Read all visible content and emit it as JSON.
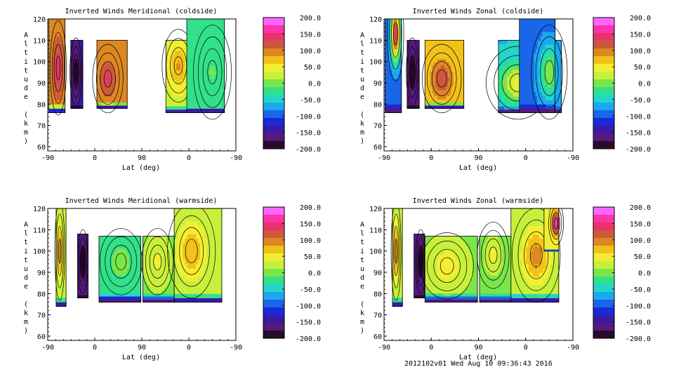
{
  "footer": "2012102v01 Wed Aug 10 09:36:43 2016",
  "colorbar": {
    "ticks": [
      200,
      150,
      100,
      50,
      0,
      -50,
      -100,
      -150,
      -200
    ],
    "tick_labels": [
      "200.0",
      "150.0",
      "100.0",
      "50.0",
      "0.0",
      "-50.0",
      "-100.0",
      "-150.0",
      "-200.0"
    ],
    "colors": [
      "#ff66ff",
      "#ff33aa",
      "#e8336b",
      "#cc5a3a",
      "#dd8822",
      "#f2c21a",
      "#f2ee33",
      "#c8f03a",
      "#7be64a",
      "#33e08a",
      "#22d6c8",
      "#1aa8f0",
      "#1a66e8",
      "#1a2ad8",
      "#3a1aa8",
      "#551a7a",
      "#2a0a2a"
    ]
  },
  "chart_data": [
    {
      "type": "heatmap",
      "title": "Inverted Winds Meridional (coldside)",
      "xlabel": "Lat (deg)",
      "ylabel": "Altitude (km)",
      "x_ticks": [
        "-90",
        "0",
        "90",
        "0",
        "-90"
      ],
      "y_ticks": [
        60,
        70,
        80,
        90,
        100,
        110,
        120
      ],
      "ylim": [
        58,
        120
      ],
      "zlim": [
        -200,
        200
      ],
      "blocks": [
        {
          "lat": [
            -88,
            -57
          ],
          "alt": [
            76,
            120
          ],
          "peak": [
            -70,
            97,
            145
          ],
          "bg": 95,
          "base": 80
        },
        {
          "lat": [
            -46,
            -23
          ],
          "alt": [
            78,
            110
          ],
          "peak": [
            -36,
            95,
            -195
          ],
          "bg": -150,
          "base": 80
        },
        {
          "lat": [
            4,
            62
          ],
          "alt": [
            78,
            110
          ],
          "peak": [
            25,
            92,
            135
          ],
          "bg": 85,
          "base": 81
        },
        {
          "lat": [
            136,
            198
          ],
          "alt": [
            76,
            110
          ],
          "peak": [
            160,
            98,
            85
          ],
          "bg": 30,
          "base": 79
        },
        {
          "lat": [
            176,
            248
          ],
          "alt": [
            76,
            120
          ],
          "peak": [
            225,
            95,
            -10
          ],
          "bg": -35,
          "base": 79
        }
      ]
    },
    {
      "type": "heatmap",
      "title": "Inverted Winds Zonal (coldside)",
      "xlabel": "Lat (deg)",
      "ylabel": "Altitude (km)",
      "x_ticks": [
        "-90",
        "0",
        "90",
        "0",
        "-90"
      ],
      "y_ticks": [
        60,
        70,
        80,
        90,
        100,
        110,
        120
      ],
      "ylim": [
        58,
        120
      ],
      "zlim": [
        -200,
        200
      ],
      "blocks": [
        {
          "lat": [
            -88,
            -57
          ],
          "alt": [
            76,
            120
          ],
          "peak": [
            -68,
            113,
            150
          ],
          "bg": -95,
          "base": 80
        },
        {
          "lat": [
            -46,
            -23
          ],
          "alt": [
            78,
            110
          ],
          "peak": [
            -36,
            95,
            -195
          ],
          "bg": -160,
          "base": 80
        },
        {
          "lat": [
            -12,
            62
          ],
          "alt": [
            78,
            110
          ],
          "peak": [
            20,
            92,
            130
          ],
          "bg": 60,
          "base": 81
        },
        {
          "lat": [
            128,
            248
          ],
          "alt": [
            76,
            110
          ],
          "peak": [
            165,
            90,
            45
          ],
          "bg": -60,
          "base": 79
        },
        {
          "lat": [
            168,
            236
          ],
          "alt": [
            76,
            120
          ],
          "peak": [
            225,
            95,
            10
          ],
          "bg": -90,
          "base": 80
        }
      ]
    },
    {
      "type": "heatmap",
      "title": "Inverted Winds Meridional (warmside)",
      "xlabel": "Lat (deg)",
      "ylabel": "Altitude (km)",
      "x_ticks": [
        "-90",
        "0",
        "90",
        "0",
        "-90"
      ],
      "y_ticks": [
        60,
        70,
        80,
        90,
        100,
        110,
        120
      ],
      "ylim": [
        58,
        120
      ],
      "zlim": [
        -200,
        200
      ],
      "blocks": [
        {
          "lat": [
            -74,
            -55
          ],
          "alt": [
            74,
            120
          ],
          "peak": [
            -67,
            100,
            95
          ],
          "bg": 15,
          "base": 78
        },
        {
          "lat": [
            -33,
            -13
          ],
          "alt": [
            78,
            108
          ],
          "peak": [
            -23,
            95,
            -195
          ],
          "bg": -165,
          "base": 80
        },
        {
          "lat": [
            8,
            88
          ],
          "alt": [
            76,
            107
          ],
          "peak": [
            50,
            95,
            0
          ],
          "bg": -25,
          "base": 80
        },
        {
          "lat": [
            92,
            152
          ],
          "alt": [
            76,
            107
          ],
          "peak": [
            120,
            95,
            40
          ],
          "bg": 10,
          "base": 80
        },
        {
          "lat": [
            152,
            243
          ],
          "alt": [
            76,
            120
          ],
          "peak": [
            185,
            100,
            80
          ],
          "bg": 20,
          "base": 80
        }
      ]
    },
    {
      "type": "heatmap",
      "title": "Inverted Winds Zonal (warmside)",
      "xlabel": "Lat (deg)",
      "ylabel": "Altitude (km)",
      "x_ticks": [
        "-90",
        "0",
        "90",
        "0",
        "-90"
      ],
      "y_ticks": [
        60,
        70,
        80,
        90,
        100,
        110,
        120
      ],
      "ylim": [
        58,
        120
      ],
      "zlim": [
        -200,
        200
      ],
      "blocks": [
        {
          "lat": [
            -74,
            -55
          ],
          "alt": [
            74,
            120
          ],
          "peak": [
            -67,
            100,
            100
          ],
          "bg": 20,
          "base": 78
        },
        {
          "lat": [
            -33,
            -13
          ],
          "alt": [
            78,
            108
          ],
          "peak": [
            -20,
            95,
            -195
          ],
          "bg": -160,
          "base": 80
        },
        {
          "lat": [
            -12,
            88
          ],
          "alt": [
            76,
            107
          ],
          "peak": [
            30,
            93,
            55
          ],
          "bg": 10,
          "base": 80
        },
        {
          "lat": [
            92,
            152
          ],
          "alt": [
            76,
            107
          ],
          "peak": [
            118,
            98,
            40
          ],
          "bg": 0,
          "base": 80
        },
        {
          "lat": [
            152,
            243
          ],
          "alt": [
            76,
            120
          ],
          "peak": [
            200,
            98,
            95
          ],
          "bg": 15,
          "base": 80
        },
        {
          "lat": [
            215,
            243
          ],
          "alt": [
            100,
            120
          ],
          "peak": [
            238,
            113,
            170
          ],
          "bg": 40,
          "base": 101
        }
      ]
    }
  ]
}
